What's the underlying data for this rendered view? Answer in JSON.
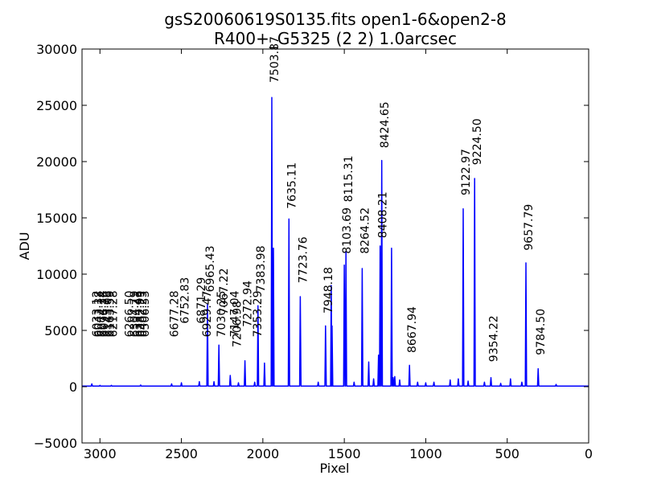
{
  "chart_data": {
    "type": "line",
    "title": "gsS20060619S0135.fits open1-6&open2-8",
    "subtitle": "R400+_G5325 (2 2) 1.0arcsec",
    "xlabel": "Pixel",
    "ylabel": "ADU",
    "xlim": [
      3110,
      0
    ],
    "ylim": [
      -5000,
      30000
    ],
    "x_ticks": [
      3000,
      2500,
      2000,
      1500,
      1000,
      500,
      0
    ],
    "y_ticks": [
      -5000,
      0,
      5000,
      10000,
      15000,
      20000,
      25000,
      30000
    ],
    "grid": false,
    "legend": "none",
    "line_color": "#0000ff",
    "baseline": 50,
    "series": [
      {
        "peaks": [
          {
            "x": 3050,
            "y": 250
          },
          {
            "x": 3000,
            "y": 120
          },
          {
            "x": 2930,
            "y": 120
          },
          {
            "x": 2750,
            "y": 150
          },
          {
            "x": 2560,
            "y": 250
          },
          {
            "x": 2500,
            "y": 350
          },
          {
            "x": 2390,
            "y": 450
          },
          {
            "x": 2340,
            "y": 7300
          },
          {
            "x": 2300,
            "y": 450
          },
          {
            "x": 2270,
            "y": 3700
          },
          {
            "x": 2200,
            "y": 1000
          },
          {
            "x": 2150,
            "y": 350
          },
          {
            "x": 2110,
            "y": 2300
          },
          {
            "x": 2050,
            "y": 400
          },
          {
            "x": 2030,
            "y": 7200
          },
          {
            "x": 1990,
            "y": 2100
          },
          {
            "x": 1945,
            "y": 25700
          },
          {
            "x": 1935,
            "y": 12300
          },
          {
            "x": 1840,
            "y": 14900
          },
          {
            "x": 1770,
            "y": 8000
          },
          {
            "x": 1660,
            "y": 400
          },
          {
            "x": 1615,
            "y": 5400
          },
          {
            "x": 1580,
            "y": 9000
          },
          {
            "x": 1575,
            "y": 5400
          },
          {
            "x": 1500,
            "y": 10800
          },
          {
            "x": 1490,
            "y": 12000
          },
          {
            "x": 1440,
            "y": 400
          },
          {
            "x": 1390,
            "y": 10500
          },
          {
            "x": 1350,
            "y": 2200
          },
          {
            "x": 1320,
            "y": 700
          },
          {
            "x": 1290,
            "y": 2800
          },
          {
            "x": 1280,
            "y": 12500
          },
          {
            "x": 1270,
            "y": 20100
          },
          {
            "x": 1210,
            "y": 12300
          },
          {
            "x": 1200,
            "y": 800
          },
          {
            "x": 1190,
            "y": 900
          },
          {
            "x": 1160,
            "y": 600
          },
          {
            "x": 1100,
            "y": 1900
          },
          {
            "x": 1050,
            "y": 400
          },
          {
            "x": 1000,
            "y": 350
          },
          {
            "x": 950,
            "y": 400
          },
          {
            "x": 850,
            "y": 600
          },
          {
            "x": 800,
            "y": 700
          },
          {
            "x": 770,
            "y": 15800
          },
          {
            "x": 740,
            "y": 500
          },
          {
            "x": 700,
            "y": 18500
          },
          {
            "x": 640,
            "y": 400
          },
          {
            "x": 600,
            "y": 800
          },
          {
            "x": 540,
            "y": 300
          },
          {
            "x": 480,
            "y": 700
          },
          {
            "x": 410,
            "y": 400
          },
          {
            "x": 385,
            "y": 11000
          },
          {
            "x": 310,
            "y": 1600
          },
          {
            "x": 200,
            "y": 200
          }
        ]
      }
    ],
    "annotations": [
      {
        "x": 3020,
        "y": 4400,
        "label": "6033.12"
      },
      {
        "x": 3008,
        "y": 4400,
        "label": "6043.38"
      },
      {
        "x": 2990,
        "y": 4400,
        "label": "6074.34"
      },
      {
        "x": 2975,
        "y": 4400,
        "label": "6096.16"
      },
      {
        "x": 2955,
        "y": 4400,
        "label": "6143.06"
      },
      {
        "x": 2940,
        "y": 4400,
        "label": "6163.59"
      },
      {
        "x": 2920,
        "y": 4400,
        "label": "6217.28"
      },
      {
        "x": 2820,
        "y": 4400,
        "label": "6266.50"
      },
      {
        "x": 2790,
        "y": 4400,
        "label": "6304.79"
      },
      {
        "x": 2770,
        "y": 4400,
        "label": "6334.43"
      },
      {
        "x": 2755,
        "y": 4400,
        "label": "6382.99"
      },
      {
        "x": 2740,
        "y": 4400,
        "label": "6402.25"
      },
      {
        "x": 2725,
        "y": 4400,
        "label": "6506.53"
      },
      {
        "x": 2545,
        "y": 4400,
        "label": "6677.28"
      },
      {
        "x": 2480,
        "y": 5600,
        "label": "6752.83"
      },
      {
        "x": 2380,
        "y": 5600,
        "label": "6871.29"
      },
      {
        "x": 2345,
        "y": 4400,
        "label": "6929.47"
      },
      {
        "x": 2325,
        "y": 8400,
        "label": "6965.43"
      },
      {
        "x": 2255,
        "y": 4400,
        "label": "7030.25"
      },
      {
        "x": 2240,
        "y": 6400,
        "label": "7067.22"
      },
      {
        "x": 2175,
        "y": 4400,
        "label": "7147.04"
      },
      {
        "x": 2160,
        "y": 3500,
        "label": "7206.98"
      },
      {
        "x": 2095,
        "y": 5300,
        "label": "7272.94"
      },
      {
        "x": 2035,
        "y": 4400,
        "label": "7353.29"
      },
      {
        "x": 2015,
        "y": 8400,
        "label": "7383.98"
      },
      {
        "x": 1930,
        "y": 27000,
        "label": "7503.87"
      },
      {
        "x": 1825,
        "y": 15800,
        "label": "7635.11"
      },
      {
        "x": 1755,
        "y": 9200,
        "label": "7723.76"
      },
      {
        "x": 1600,
        "y": 6500,
        "label": "7948.18"
      },
      {
        "x": 1485,
        "y": 11800,
        "label": "8103.69"
      },
      {
        "x": 1475,
        "y": 16400,
        "label": "8115.31"
      },
      {
        "x": 1375,
        "y": 11800,
        "label": "8264.52"
      },
      {
        "x": 1265,
        "y": 13200,
        "label": "8408.21"
      },
      {
        "x": 1255,
        "y": 21200,
        "label": "8424.65"
      },
      {
        "x": 1085,
        "y": 3000,
        "label": "8667.94"
      },
      {
        "x": 755,
        "y": 17000,
        "label": "9122.97"
      },
      {
        "x": 685,
        "y": 19700,
        "label": "9224.50"
      },
      {
        "x": 585,
        "y": 2200,
        "label": "9354.22"
      },
      {
        "x": 370,
        "y": 12100,
        "label": "9657.79"
      },
      {
        "x": 295,
        "y": 2800,
        "label": "9784.50"
      }
    ]
  }
}
